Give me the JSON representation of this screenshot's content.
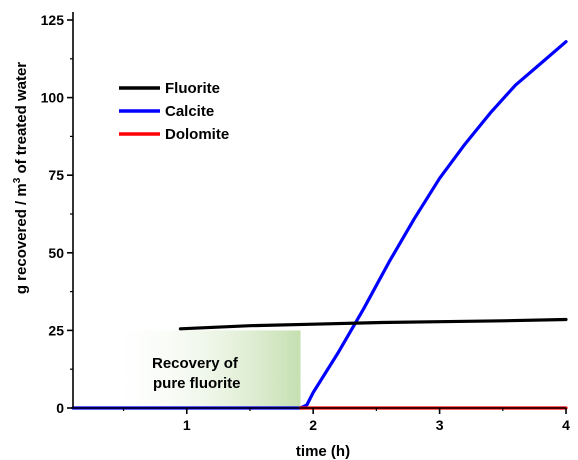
{
  "chart_data": {
    "type": "line",
    "xlabel": "time (h)",
    "ylabel": {
      "part1": "g recovered / m",
      "superscript": "3",
      "part2": " of treated water"
    },
    "xlim": [
      0.1,
      4.0
    ],
    "ylim": [
      0,
      125
    ],
    "xticks": [
      1,
      2,
      3,
      4
    ],
    "yticks": [
      0,
      25,
      50,
      75,
      100,
      125
    ],
    "grid": false,
    "legend_position": "top-left",
    "series": [
      {
        "name": "Fluorite",
        "color": "#000000",
        "x": [
          0.95,
          1.5,
          2.0,
          2.5,
          3.0,
          3.5,
          4.0
        ],
        "y": [
          25.5,
          26.5,
          27.0,
          27.5,
          27.8,
          28.1,
          28.5
        ]
      },
      {
        "name": "Calcite",
        "color": "#0000ff",
        "x": [
          0.1,
          1.9,
          1.95,
          2.0,
          2.2,
          2.4,
          2.6,
          2.8,
          3.0,
          3.2,
          3.4,
          3.6,
          3.8,
          4.0
        ],
        "y": [
          0,
          0,
          1,
          5,
          18,
          32,
          47,
          61,
          74,
          85,
          95,
          104,
          111,
          118
        ]
      },
      {
        "name": "Dolomite",
        "color": "#ff0000",
        "x": [
          1.9,
          4.0
        ],
        "y": [
          0,
          0
        ]
      }
    ],
    "annotation": {
      "line1": "Recovery of",
      "line2": "pure fluorite",
      "x_range": [
        0.35,
        1.9
      ],
      "y_range": [
        0,
        25
      ],
      "fill_color": "#c5dfb0"
    }
  }
}
